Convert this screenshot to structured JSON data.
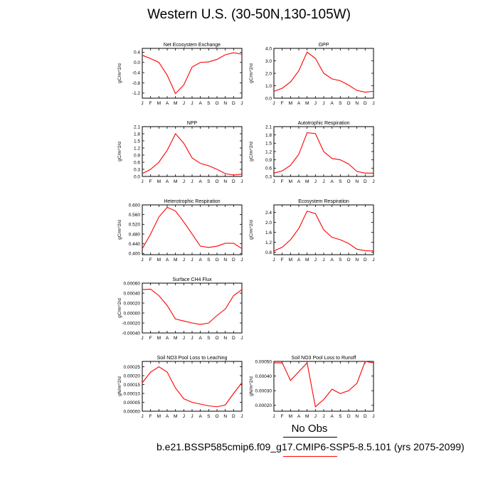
{
  "title": "Western U.S. (30-50N,130-105W)",
  "colors": {
    "line": "#ff0000",
    "axis": "#000000",
    "obs_rule": "#000000",
    "case_rule": "#ff0000"
  },
  "footer": {
    "obs_label": "No Obs",
    "case_label": "b.e21.BSSP585cmip6.f09_g17.CMIP6-SSP5-8.5.101 (yrs 2075-2099)"
  },
  "chart_data": [
    {
      "type": "line",
      "title": "Net Ecosystem Exchange",
      "ylabel": "gC/m^2/d",
      "x": [
        "J",
        "F",
        "M",
        "A",
        "M",
        "J",
        "J",
        "A",
        "S",
        "O",
        "N",
        "D",
        "J"
      ],
      "ylim": [
        -1.4,
        0.55
      ],
      "yticks": [
        "0.4",
        "0.0",
        "-0.4",
        "-0.8",
        "-1.2"
      ],
      "ytick_values": [
        0.4,
        0.0,
        -0.4,
        -0.8,
        -1.2
      ],
      "series": [
        {
          "values": [
            0.28,
            0.15,
            0.0,
            -0.5,
            -1.22,
            -0.88,
            -0.18,
            0.0,
            0.02,
            0.12,
            0.3,
            0.38,
            0.32
          ]
        }
      ]
    },
    {
      "type": "line",
      "title": "GPP",
      "ylabel": "gC/m^2/d",
      "x": [
        "J",
        "F",
        "M",
        "A",
        "M",
        "J",
        "J",
        "A",
        "S",
        "O",
        "N",
        "D",
        "J"
      ],
      "ylim": [
        0.0,
        4.0
      ],
      "yticks": [
        "4.0",
        "3.0",
        "2.0",
        "1.0",
        "0.0"
      ],
      "ytick_values": [
        4.0,
        3.0,
        2.0,
        1.0,
        0.0
      ],
      "series": [
        {
          "values": [
            0.55,
            0.8,
            1.3,
            2.2,
            3.7,
            3.2,
            2.0,
            1.55,
            1.4,
            1.05,
            0.62,
            0.48,
            0.55
          ]
        }
      ]
    },
    {
      "type": "line",
      "title": "NPP",
      "ylabel": "gC/m^2/d",
      "x": [
        "J",
        "F",
        "M",
        "A",
        "M",
        "J",
        "J",
        "A",
        "S",
        "O",
        "N",
        "D",
        "J"
      ],
      "ylim": [
        0.0,
        2.1
      ],
      "yticks": [
        "2.1",
        "1.8",
        "1.5",
        "1.2",
        "0.9",
        "0.6",
        "0.3",
        "0.0"
      ],
      "ytick_values": [
        2.1,
        1.8,
        1.5,
        1.2,
        0.9,
        0.6,
        0.3,
        0.0
      ],
      "series": [
        {
          "values": [
            0.12,
            0.3,
            0.6,
            1.1,
            1.8,
            1.4,
            0.78,
            0.55,
            0.45,
            0.3,
            0.12,
            0.06,
            0.1
          ]
        }
      ]
    },
    {
      "type": "line",
      "title": "Autotrophic Respiration",
      "ylabel": "gC/m^2/d",
      "x": [
        "J",
        "F",
        "M",
        "A",
        "M",
        "J",
        "J",
        "A",
        "S",
        "O",
        "N",
        "D",
        "J"
      ],
      "ylim": [
        0.3,
        2.1
      ],
      "yticks": [
        "2.1",
        "1.8",
        "1.5",
        "1.2",
        "0.9",
        "0.6",
        "0.3"
      ],
      "ytick_values": [
        2.1,
        1.8,
        1.5,
        1.2,
        0.9,
        0.6,
        0.3
      ],
      "series": [
        {
          "values": [
            0.42,
            0.5,
            0.7,
            1.1,
            1.88,
            1.85,
            1.2,
            0.95,
            0.9,
            0.75,
            0.48,
            0.42,
            0.42
          ]
        }
      ]
    },
    {
      "type": "line",
      "title": "Heterotrophic Respiration",
      "ylabel": "gC/m^2/d",
      "x": [
        "J",
        "F",
        "M",
        "A",
        "M",
        "J",
        "J",
        "A",
        "S",
        "O",
        "N",
        "D",
        "J"
      ],
      "ylim": [
        0.395,
        0.6
      ],
      "yticks": [
        "0.600",
        "0.560",
        "0.520",
        "0.480",
        "0.440",
        "0.400"
      ],
      "ytick_values": [
        0.6,
        0.56,
        0.52,
        0.48,
        0.44,
        0.4
      ],
      "series": [
        {
          "values": [
            0.42,
            0.48,
            0.55,
            0.59,
            0.575,
            0.53,
            0.48,
            0.43,
            0.425,
            0.43,
            0.442,
            0.442,
            0.42
          ]
        }
      ]
    },
    {
      "type": "line",
      "title": "Ecosystem Respiration",
      "ylabel": "gC/m^2/d",
      "x": [
        "J",
        "F",
        "M",
        "A",
        "M",
        "J",
        "J",
        "A",
        "S",
        "O",
        "N",
        "D",
        "J"
      ],
      "ylim": [
        0.7,
        2.7
      ],
      "yticks": [
        "2.4",
        "2.0",
        "1.6",
        "1.2",
        "0.8"
      ],
      "ytick_values": [
        2.4,
        2.0,
        1.6,
        1.2,
        0.8
      ],
      "series": [
        {
          "values": [
            0.85,
            1.0,
            1.3,
            1.75,
            2.45,
            2.35,
            1.7,
            1.4,
            1.3,
            1.15,
            0.92,
            0.86,
            0.85
          ]
        }
      ]
    },
    {
      "type": "line",
      "title": "Surface CH4 Flux",
      "ylabel": "gC/m^2/d",
      "x": [
        "J",
        "F",
        "M",
        "A",
        "M",
        "J",
        "J",
        "A",
        "S",
        "O",
        "N",
        "D",
        "J"
      ],
      "ylim": [
        -0.0004,
        0.0006
      ],
      "yticks": [
        "0.00060",
        "0.00040",
        "0.00020",
        "0.00000",
        "-0.00020",
        "-0.00040"
      ],
      "ytick_values": [
        0.0006,
        0.0004,
        0.0002,
        0.0,
        -0.0002,
        -0.0004
      ],
      "series": [
        {
          "values": [
            0.00047,
            0.00048,
            0.00035,
            0.00015,
            -0.00012,
            -0.00016,
            -0.0002,
            -0.00023,
            -0.0002,
            -5e-05,
            8e-05,
            0.00035,
            0.00047
          ]
        }
      ]
    },
    {
      "type": "line",
      "title": "Soil NO3 Pool Loss to Leaching",
      "ylabel": "gN/m^2/d",
      "x": [
        "J",
        "F",
        "M",
        "A",
        "M",
        "J",
        "J",
        "A",
        "S",
        "O",
        "N",
        "D",
        "J"
      ],
      "ylim": [
        0.0,
        0.00028
      ],
      "yticks": [
        "0.00025",
        "0.00020",
        "0.00015",
        "0.00010",
        "0.00005",
        "0.00000"
      ],
      "ytick_values": [
        0.00025,
        0.0002,
        0.00015,
        0.0001,
        5e-05,
        0.0
      ],
      "series": [
        {
          "values": [
            0.00016,
            0.00022,
            0.00025,
            0.00022,
            0.00013,
            7e-05,
            5e-05,
            4e-05,
            3e-05,
            2.5e-05,
            3.5e-05,
            0.0001,
            0.00016
          ]
        }
      ]
    },
    {
      "type": "line",
      "title": "Soil NO3 Pool Loss to Runoff",
      "ylabel": "gN/m^2/d",
      "x": [
        "J",
        "F",
        "M",
        "A",
        "M",
        "J",
        "J",
        "A",
        "S",
        "O",
        "N",
        "D",
        "J"
      ],
      "ylim": [
        0.00016,
        0.0005
      ],
      "yticks": [
        "0.00050",
        "0.00040",
        "0.00030",
        "0.00020"
      ],
      "ytick_values": [
        0.0005,
        0.0004,
        0.0003,
        0.0002
      ],
      "series": [
        {
          "values": [
            0.00049,
            0.00049,
            0.00037,
            0.00043,
            0.00049,
            0.00019,
            0.00024,
            0.00031,
            0.00028,
            0.0003,
            0.00035,
            0.0005,
            0.00049
          ]
        }
      ]
    }
  ]
}
